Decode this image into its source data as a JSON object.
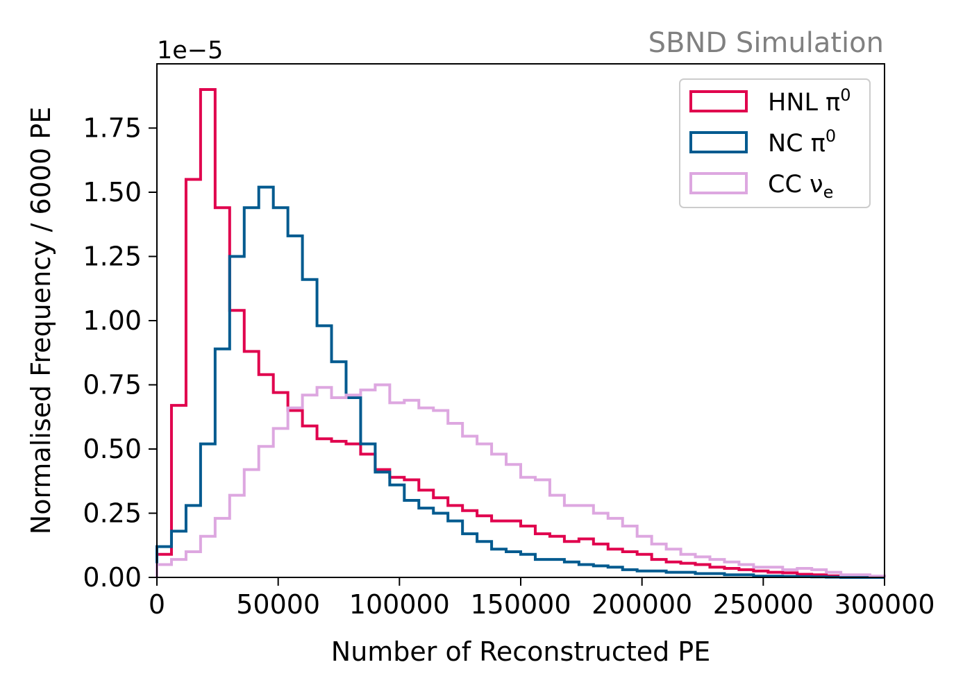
{
  "watermark": "SBND Simulation",
  "chart_data": {
    "type": "histogram",
    "title": "",
    "xlabel": "Number of Reconstructed PE",
    "ylabel": "Normalised Frequency / 6000 PE",
    "y_offset_label": "1e−5",
    "xlim": [
      0,
      300000
    ],
    "ylim": [
      0,
      2e-05
    ],
    "bin_width": 6000,
    "x_ticks": [
      0,
      50000,
      100000,
      150000,
      200000,
      250000,
      300000
    ],
    "x_tick_labels": [
      "0",
      "50000",
      "100000",
      "150000",
      "200000",
      "250000",
      "300000"
    ],
    "y_ticks": [
      0,
      0.25,
      0.5,
      0.75,
      1.0,
      1.25,
      1.5,
      1.75
    ],
    "y_tick_labels": [
      "0.00",
      "0.25",
      "0.50",
      "0.75",
      "1.00",
      "1.25",
      "1.50",
      "1.75"
    ],
    "y_scale_factor": 1e-05,
    "grid": false,
    "legend_position": "top-right",
    "series": [
      {
        "name": "HNL π0",
        "legend_main": "HNL π",
        "legend_sup": "0",
        "legend_sub": "",
        "color": "#e0004d",
        "values": [
          0.09,
          0.67,
          1.55,
          1.9,
          1.44,
          1.04,
          0.88,
          0.79,
          0.72,
          0.65,
          0.59,
          0.54,
          0.53,
          0.52,
          0.48,
          0.42,
          0.39,
          0.38,
          0.34,
          0.31,
          0.28,
          0.26,
          0.24,
          0.22,
          0.22,
          0.2,
          0.17,
          0.16,
          0.14,
          0.15,
          0.13,
          0.11,
          0.1,
          0.09,
          0.07,
          0.06,
          0.055,
          0.05,
          0.04,
          0.035,
          0.03,
          0.025,
          0.02,
          0.018,
          0.012,
          0.01,
          0.006,
          0.003,
          0.002,
          0.001
        ]
      },
      {
        "name": "NC π0",
        "legend_main": "NC π",
        "legend_sup": "0",
        "legend_sub": "",
        "color": "#005a8f",
        "values": [
          0.12,
          0.18,
          0.28,
          0.52,
          0.89,
          1.25,
          1.44,
          1.52,
          1.44,
          1.33,
          1.16,
          0.98,
          0.84,
          0.7,
          0.52,
          0.41,
          0.36,
          0.3,
          0.27,
          0.25,
          0.22,
          0.17,
          0.14,
          0.11,
          0.1,
          0.09,
          0.07,
          0.07,
          0.06,
          0.05,
          0.045,
          0.04,
          0.03,
          0.025,
          0.025,
          0.02,
          0.02,
          0.015,
          0.015,
          0.01,
          0.01,
          0.005,
          0.005,
          0.004,
          0.003,
          0.002,
          0.001,
          0.0,
          0.0,
          0.0
        ]
      },
      {
        "name": "CC νe",
        "legend_main": "CC ν",
        "legend_sup": "",
        "legend_sub": "e",
        "color": "#dda7e0",
        "values": [
          0.05,
          0.07,
          0.1,
          0.16,
          0.23,
          0.32,
          0.42,
          0.51,
          0.58,
          0.66,
          0.71,
          0.74,
          0.7,
          0.71,
          0.73,
          0.75,
          0.68,
          0.69,
          0.66,
          0.65,
          0.6,
          0.55,
          0.52,
          0.48,
          0.44,
          0.39,
          0.38,
          0.32,
          0.28,
          0.28,
          0.25,
          0.23,
          0.2,
          0.16,
          0.13,
          0.11,
          0.09,
          0.08,
          0.07,
          0.06,
          0.05,
          0.04,
          0.04,
          0.03,
          0.035,
          0.03,
          0.02,
          0.01,
          0.01,
          0.005
        ]
      }
    ]
  }
}
